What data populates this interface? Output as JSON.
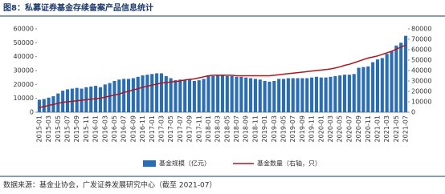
{
  "chart_data": {
    "type": "bar-line",
    "title": "图8：私募证券基金存续备案产品信息统计",
    "source": "数据来源：基金业协会，广发证券发展研究中心（截至 2021-07）",
    "categories": [
      "2015-01",
      null,
      "2015-03",
      null,
      "2015-05",
      null,
      "2015-07",
      null,
      "2015-09",
      null,
      "2015-11",
      null,
      "2016-01",
      null,
      "2016-03",
      null,
      "2016-05",
      null,
      "2016-07",
      null,
      "2016-09",
      null,
      "2016-11",
      null,
      "2017-01",
      null,
      "2017-03",
      null,
      "2017-05",
      null,
      "2017-07",
      null,
      "2017-09",
      null,
      "2017-11",
      null,
      "2018-01",
      null,
      "2018-03",
      null,
      "2018-05",
      null,
      "2018-07",
      null,
      "2018-09",
      null,
      "2018-11",
      null,
      "2019-01",
      null,
      "2019-03",
      null,
      "2019-05",
      null,
      "2019-07",
      null,
      "2019-09",
      null,
      "2019-11",
      null,
      "2020-01",
      null,
      "2020-03",
      null,
      "2020-05",
      null,
      "2020-07",
      null,
      "2020-09",
      null,
      "2020-11",
      null,
      "2021-01",
      null,
      "2021-03",
      null,
      "2021-05",
      null,
      "2021-07"
    ],
    "series": [
      {
        "name": "基金规模（亿元）",
        "type": "bar",
        "color": "#2a6db5",
        "values": [
          9000,
          9500,
          10500,
          11500,
          13500,
          15500,
          16500,
          17000,
          17500,
          17000,
          18000,
          18500,
          19000,
          18000,
          20000,
          21000,
          22500,
          23500,
          24000,
          24000,
          24500,
          25500,
          26500,
          27000,
          27500,
          28000,
          28000,
          26000,
          24500,
          23000,
          23500,
          23000,
          23500,
          22500,
          23000,
          24000,
          26500,
          26000,
          26500,
          27000,
          26000,
          26000,
          25500,
          25500,
          25000,
          24500,
          24000,
          23500,
          22500,
          22000,
          22500,
          24000,
          24000,
          24500,
          24500,
          24500,
          24500,
          24500,
          25000,
          25500,
          25000,
          25000,
          25500,
          26000,
          26500,
          27000,
          27000,
          27500,
          32000,
          32500,
          33000,
          36000,
          38000,
          39000,
          42000,
          44000,
          48000,
          50000,
          55000
        ]
      },
      {
        "name": "基金数量（右轴，只）",
        "type": "line",
        "axis": "y2",
        "color": "#b0151b",
        "values": [
          4500,
          5500,
          6500,
          7500,
          8500,
          9500,
          10000,
          10500,
          11000,
          11500,
          12000,
          12500,
          13000,
          13500,
          14500,
          15500,
          16500,
          17500,
          19000,
          20000,
          21500,
          22500,
          24000,
          25000,
          26000,
          27000,
          28000,
          28500,
          29000,
          29500,
          30000,
          31000,
          31500,
          32000,
          33000,
          34000,
          35000,
          35500,
          35500,
          35500,
          35500,
          35500,
          35000,
          35000,
          35000,
          35000,
          35000,
          35000,
          35000,
          35000,
          35500,
          36000,
          36500,
          37000,
          37500,
          38000,
          38500,
          39000,
          39500,
          40000,
          40500,
          41000,
          41500,
          42500,
          43500,
          45000,
          46000,
          47500,
          49000,
          50500,
          52000,
          53000,
          54000,
          55500,
          57000,
          58500,
          60500,
          62500,
          64500
        ]
      }
    ],
    "ylim": [
      0,
      60000
    ],
    "yticks": [
      0,
      10000,
      20000,
      30000,
      40000,
      50000,
      60000
    ],
    "y2lim": [
      0,
      80000
    ],
    "y2ticks": [
      0,
      10000,
      20000,
      30000,
      40000,
      50000,
      60000,
      70000,
      80000
    ],
    "legend": "bottom"
  }
}
